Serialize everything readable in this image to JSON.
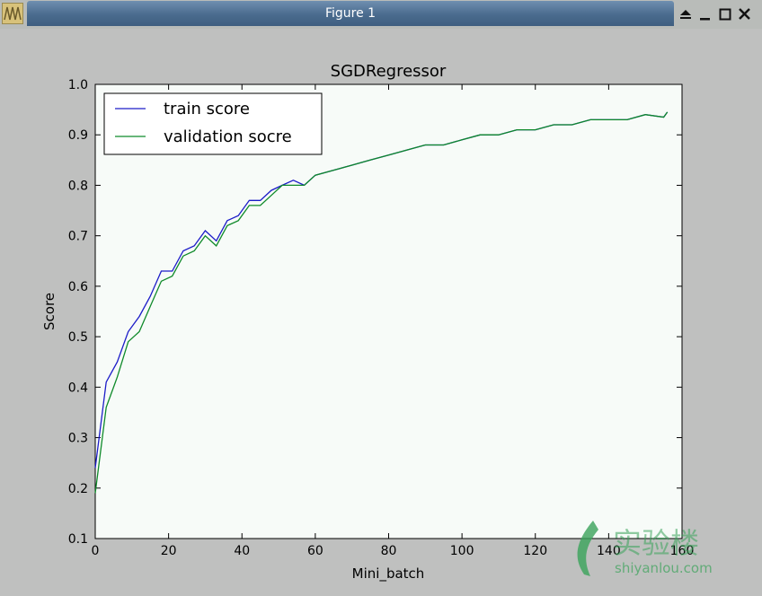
{
  "window": {
    "title": "Figure 1",
    "buttons": [
      "eject-icon",
      "minimize-icon",
      "maximize-icon",
      "close-icon"
    ]
  },
  "watermark": {
    "cn": "实验楼",
    "url": "shiyanlou.com",
    "color": "#3aa35a"
  },
  "chart_data": {
    "type": "line",
    "title": "SGDRegressor",
    "xlabel": "Mini_batch",
    "ylabel": "Score",
    "xlim": [
      0,
      160
    ],
    "ylim": [
      0.1,
      1.0
    ],
    "xticks": [
      "0",
      "20",
      "40",
      "60",
      "80",
      "100",
      "120",
      "140",
      "160"
    ],
    "yticks": [
      "0.1",
      "0.2",
      "0.3",
      "0.4",
      "0.5",
      "0.6",
      "0.7",
      "0.8",
      "0.9",
      "1.0"
    ],
    "legend_position": "top-left",
    "grid": false,
    "series": [
      {
        "name": "train score",
        "color": "#1c1cc8",
        "x": [
          0,
          3,
          6,
          9,
          12,
          15,
          18,
          21,
          24,
          27,
          30,
          33,
          36,
          39,
          42,
          45,
          48,
          51,
          54,
          57,
          60,
          65,
          70,
          75,
          80,
          85,
          90,
          95,
          100,
          105,
          110,
          115,
          120,
          125,
          130,
          135,
          140,
          145,
          150,
          155,
          156
        ],
        "values": [
          0.24,
          0.41,
          0.45,
          0.51,
          0.54,
          0.58,
          0.63,
          0.63,
          0.67,
          0.68,
          0.71,
          0.69,
          0.73,
          0.74,
          0.77,
          0.77,
          0.79,
          0.8,
          0.81,
          0.8,
          0.82,
          0.83,
          0.84,
          0.85,
          0.86,
          0.87,
          0.88,
          0.88,
          0.89,
          0.9,
          0.9,
          0.91,
          0.91,
          0.92,
          0.92,
          0.93,
          0.93,
          0.93,
          0.94,
          0.935,
          0.945
        ]
      },
      {
        "name": "validation socre",
        "color": "#0f8a2a",
        "x": [
          0,
          3,
          6,
          9,
          12,
          15,
          18,
          21,
          24,
          27,
          30,
          33,
          36,
          39,
          42,
          45,
          48,
          51,
          54,
          57,
          60,
          65,
          70,
          75,
          80,
          85,
          90,
          95,
          100,
          105,
          110,
          115,
          120,
          125,
          130,
          135,
          140,
          145,
          150,
          155,
          156
        ],
        "values": [
          0.19,
          0.36,
          0.42,
          0.49,
          0.51,
          0.56,
          0.61,
          0.62,
          0.66,
          0.67,
          0.7,
          0.68,
          0.72,
          0.73,
          0.76,
          0.76,
          0.78,
          0.8,
          0.8,
          0.8,
          0.82,
          0.83,
          0.84,
          0.85,
          0.86,
          0.87,
          0.88,
          0.88,
          0.89,
          0.9,
          0.9,
          0.91,
          0.91,
          0.92,
          0.92,
          0.93,
          0.93,
          0.93,
          0.94,
          0.935,
          0.945
        ]
      }
    ]
  }
}
